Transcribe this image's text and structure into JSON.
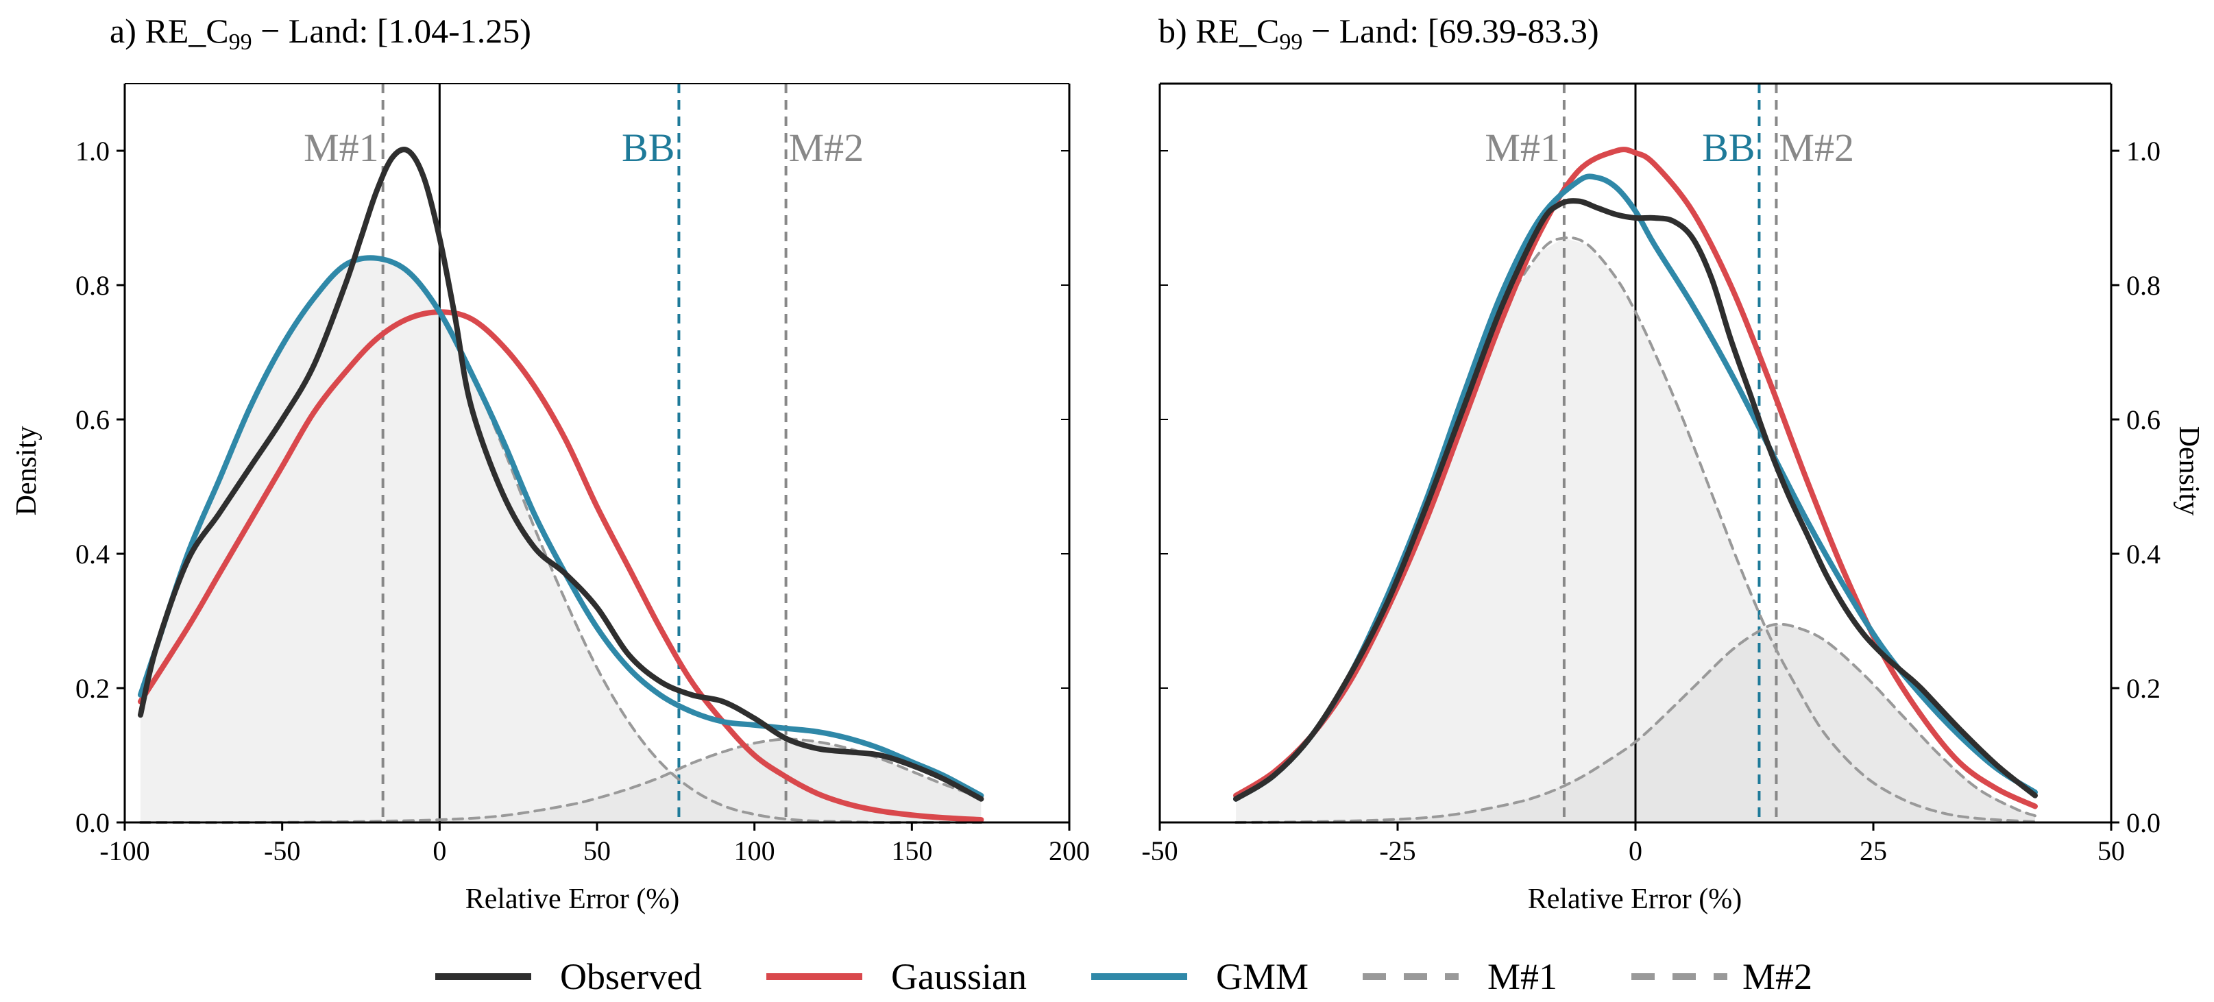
{
  "figure": {
    "legend_position": "bottom-center"
  },
  "legend": [
    {
      "label": "Observed",
      "color": "#2e2e2e",
      "style": "solid"
    },
    {
      "label": "Gaussian",
      "color": "#d9484c",
      "style": "solid"
    },
    {
      "label": "GMM",
      "color": "#2f88a8",
      "style": "solid"
    },
    {
      "label": "M#1",
      "color": "#999999",
      "style": "dashed"
    },
    {
      "label": "M#2",
      "color": "#999999",
      "style": "dashed"
    }
  ],
  "chart_data": [
    {
      "type": "line",
      "title_prefix": "a) RE_C",
      "title_sub": "99",
      "title_suffix": " − Land: [1.04-1.25)",
      "xlabel": "Relative Error (%)",
      "ylabel": "Density",
      "ylabel_side": "left",
      "xlim": [
        -100,
        200
      ],
      "ylim": [
        0,
        1.1
      ],
      "xticks": [
        -100,
        -50,
        0,
        50,
        100,
        150,
        200
      ],
      "xtick_labels": [
        "-100",
        "-50",
        "0",
        "50",
        "100",
        "150",
        "200"
      ],
      "yticks": [
        0,
        0.2,
        0.4,
        0.6,
        0.8,
        1.0
      ],
      "ytick_labels": [
        "0.0",
        "0.2",
        "0.4",
        "0.6",
        "0.8",
        "1.0"
      ],
      "vlines": [
        {
          "name": "M#1",
          "x": -18,
          "color": "#888888",
          "style": "dashed",
          "label": "M#1",
          "label_anchor": "end"
        },
        {
          "name": "BB",
          "x": 76,
          "color": "#1e7a99",
          "style": "dashed",
          "label": "BB",
          "label_anchor": "end"
        },
        {
          "name": "M#2",
          "x": 110,
          "color": "#888888",
          "style": "dashed",
          "label": "M#2",
          "label_anchor": "start"
        },
        {
          "name": "zero",
          "x": 0,
          "color": "#000000",
          "style": "solid",
          "label": ""
        }
      ],
      "series": [
        {
          "name": "Observed",
          "color": "#2e2e2e",
          "x": [
            -95,
            -90,
            -80,
            -70,
            -60,
            -50,
            -40,
            -30,
            -25,
            -20,
            -15,
            -10,
            -5,
            0,
            5,
            10,
            20,
            30,
            40,
            50,
            60,
            70,
            80,
            90,
            100,
            110,
            120,
            130,
            140,
            150,
            160,
            172
          ],
          "y": [
            0.16,
            0.26,
            0.39,
            0.46,
            0.53,
            0.6,
            0.68,
            0.8,
            0.87,
            0.94,
            0.99,
            1.0,
            0.96,
            0.87,
            0.75,
            0.62,
            0.49,
            0.41,
            0.37,
            0.32,
            0.25,
            0.21,
            0.19,
            0.18,
            0.155,
            0.125,
            0.11,
            0.105,
            0.1,
            0.085,
            0.065,
            0.035
          ]
        },
        {
          "name": "Gaussian",
          "color": "#d9484c",
          "x": [
            -95,
            -80,
            -70,
            -60,
            -50,
            -40,
            -30,
            -20,
            -10,
            0,
            10,
            20,
            30,
            40,
            50,
            60,
            70,
            80,
            90,
            100,
            110,
            120,
            130,
            140,
            150,
            160,
            172
          ],
          "y": [
            0.18,
            0.29,
            0.37,
            0.45,
            0.53,
            0.61,
            0.67,
            0.72,
            0.75,
            0.76,
            0.75,
            0.71,
            0.65,
            0.57,
            0.47,
            0.38,
            0.29,
            0.21,
            0.15,
            0.1,
            0.068,
            0.043,
            0.027,
            0.017,
            0.011,
            0.007,
            0.004
          ]
        },
        {
          "name": "GMM",
          "color": "#2f88a8",
          "x": [
            -95,
            -90,
            -80,
            -70,
            -60,
            -50,
            -40,
            -30,
            -20,
            -10,
            0,
            10,
            20,
            30,
            40,
            50,
            60,
            70,
            80,
            90,
            100,
            110,
            120,
            130,
            140,
            150,
            160,
            172
          ],
          "y": [
            0.19,
            0.26,
            0.4,
            0.51,
            0.62,
            0.71,
            0.78,
            0.83,
            0.84,
            0.82,
            0.76,
            0.67,
            0.57,
            0.46,
            0.37,
            0.29,
            0.23,
            0.19,
            0.165,
            0.15,
            0.145,
            0.14,
            0.135,
            0.125,
            0.11,
            0.09,
            0.07,
            0.04
          ]
        },
        {
          "name": "M#1",
          "color": "#999999",
          "dashed": true,
          "fill": "#ececec",
          "x": [
            -95,
            -80,
            -70,
            -60,
            -50,
            -40,
            -30,
            -20,
            -10,
            0,
            10,
            20,
            30,
            40,
            50,
            60,
            70,
            80,
            90,
            100,
            110,
            120,
            130,
            140,
            150,
            160,
            172
          ],
          "y": [
            0.19,
            0.4,
            0.51,
            0.62,
            0.71,
            0.78,
            0.83,
            0.84,
            0.82,
            0.76,
            0.67,
            0.56,
            0.44,
            0.33,
            0.23,
            0.15,
            0.09,
            0.05,
            0.025,
            0.012,
            0.005,
            0.002,
            0.001,
            0,
            0,
            0,
            0
          ]
        },
        {
          "name": "M#2",
          "color": "#999999",
          "dashed": true,
          "fill": "#e6e6e6",
          "x": [
            -95,
            -60,
            -30,
            0,
            20,
            40,
            50,
            60,
            70,
            80,
            90,
            100,
            110,
            120,
            130,
            140,
            150,
            160,
            172
          ],
          "y": [
            0,
            0,
            0.001,
            0.004,
            0.01,
            0.025,
            0.036,
            0.05,
            0.067,
            0.088,
            0.105,
            0.118,
            0.124,
            0.12,
            0.11,
            0.095,
            0.076,
            0.057,
            0.037
          ]
        }
      ]
    },
    {
      "type": "line",
      "title_prefix": "b) RE_C",
      "title_sub": "99",
      "title_suffix": " − Land: [69.39-83.3)",
      "xlabel": "Relative Error (%)",
      "ylabel": "Density",
      "ylabel_side": "right",
      "xlim": [
        -50,
        50
      ],
      "ylim": [
        0,
        1.1
      ],
      "xticks": [
        -50,
        -25,
        0,
        25,
        50
      ],
      "xtick_labels": [
        "-50",
        "-25",
        "0",
        "25",
        "50"
      ],
      "yticks": [
        0,
        0.2,
        0.4,
        0.6,
        0.8,
        1.0
      ],
      "ytick_labels": [
        "0.0",
        "0.2",
        "0.4",
        "0.6",
        "0.8",
        "1.0"
      ],
      "vlines": [
        {
          "name": "M#1",
          "x": -7.5,
          "color": "#888888",
          "style": "dashed",
          "label": "M#1",
          "label_anchor": "end"
        },
        {
          "name": "BB",
          "x": 13,
          "color": "#1e7a99",
          "style": "dashed",
          "label": "BB",
          "label_anchor": "end"
        },
        {
          "name": "M#2",
          "x": 14.8,
          "color": "#888888",
          "style": "dashed",
          "label": "M#2",
          "label_anchor": "start"
        },
        {
          "name": "zero",
          "x": 0,
          "color": "#000000",
          "style": "solid",
          "label": ""
        }
      ],
      "series": [
        {
          "name": "Observed",
          "color": "#2e2e2e",
          "x": [
            -42,
            -38,
            -34,
            -30,
            -26,
            -22,
            -18,
            -14,
            -10,
            -8,
            -6,
            -4,
            -2,
            0,
            2,
            4,
            6,
            8,
            10,
            12,
            14,
            16,
            18,
            20,
            22,
            24,
            26,
            28,
            30,
            34,
            38,
            42
          ],
          "y": [
            0.035,
            0.07,
            0.13,
            0.22,
            0.33,
            0.47,
            0.62,
            0.77,
            0.89,
            0.92,
            0.925,
            0.915,
            0.905,
            0.9,
            0.9,
            0.895,
            0.87,
            0.81,
            0.72,
            0.64,
            0.56,
            0.49,
            0.43,
            0.37,
            0.32,
            0.28,
            0.25,
            0.225,
            0.2,
            0.14,
            0.085,
            0.04
          ]
        },
        {
          "name": "Gaussian",
          "color": "#d9484c",
          "x": [
            -42,
            -38,
            -34,
            -30,
            -26,
            -22,
            -18,
            -14,
            -10,
            -6,
            -2,
            0,
            2,
            6,
            10,
            14,
            18,
            22,
            26,
            30,
            34,
            38,
            42
          ],
          "y": [
            0.04,
            0.075,
            0.13,
            0.21,
            0.32,
            0.45,
            0.6,
            0.75,
            0.88,
            0.97,
            1.0,
            0.997,
            0.98,
            0.91,
            0.8,
            0.66,
            0.51,
            0.37,
            0.25,
            0.16,
            0.09,
            0.05,
            0.024
          ]
        },
        {
          "name": "GMM",
          "color": "#2f88a8",
          "x": [
            -42,
            -38,
            -34,
            -30,
            -26,
            -22,
            -18,
            -14,
            -10,
            -6,
            -4,
            -2,
            0,
            2,
            6,
            10,
            14,
            18,
            22,
            26,
            30,
            34,
            38,
            42
          ],
          "y": [
            0.035,
            0.07,
            0.13,
            0.22,
            0.34,
            0.48,
            0.64,
            0.79,
            0.9,
            0.955,
            0.96,
            0.945,
            0.91,
            0.86,
            0.77,
            0.67,
            0.56,
            0.45,
            0.35,
            0.26,
            0.19,
            0.13,
            0.08,
            0.045
          ]
        },
        {
          "name": "M#1",
          "color": "#999999",
          "dashed": true,
          "fill": "#ececec",
          "x": [
            -42,
            -38,
            -34,
            -30,
            -26,
            -22,
            -18,
            -14,
            -10,
            -7.5,
            -5,
            -2,
            0,
            2,
            5,
            8,
            11,
            14,
            17,
            20,
            24,
            28,
            32,
            36,
            42
          ],
          "y": [
            0.035,
            0.07,
            0.13,
            0.22,
            0.34,
            0.48,
            0.63,
            0.76,
            0.85,
            0.87,
            0.86,
            0.81,
            0.76,
            0.7,
            0.6,
            0.49,
            0.38,
            0.28,
            0.2,
            0.13,
            0.07,
            0.035,
            0.015,
            0.006,
            0.001
          ]
        },
        {
          "name": "M#2",
          "color": "#999999",
          "dashed": true,
          "fill": "#e2e2e2",
          "x": [
            -42,
            -34,
            -26,
            -20,
            -14,
            -10,
            -6,
            -2,
            0,
            2,
            6,
            10,
            13,
            14.8,
            17,
            20,
            24,
            28,
            32,
            36,
            40,
            42
          ],
          "y": [
            0,
            0.001,
            0.004,
            0.01,
            0.025,
            0.04,
            0.065,
            0.1,
            0.12,
            0.145,
            0.2,
            0.255,
            0.285,
            0.295,
            0.29,
            0.27,
            0.22,
            0.16,
            0.1,
            0.05,
            0.02,
            0.01
          ]
        }
      ]
    }
  ]
}
